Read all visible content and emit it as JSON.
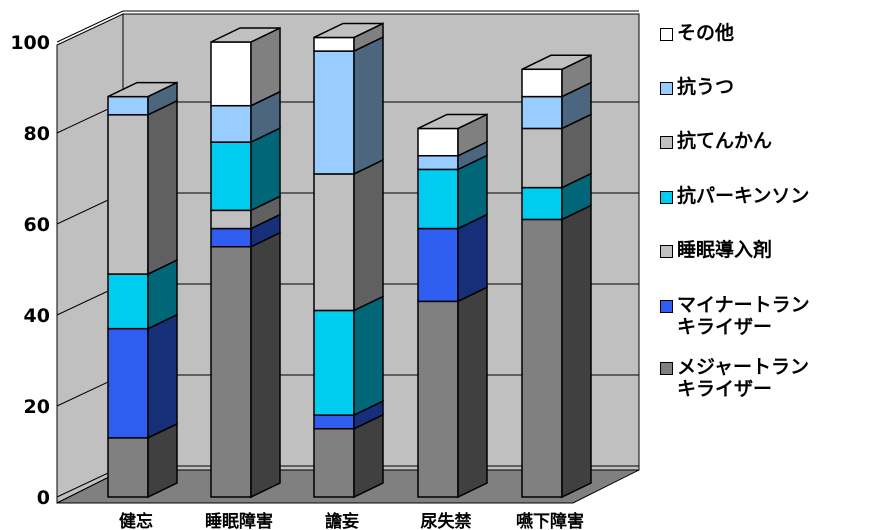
{
  "chart_data": {
    "type": "bar",
    "stacked": true,
    "style": "3d-stacked-column",
    "categories": [
      "健忘",
      "睡眠障害",
      "譫妄",
      "尿失禁",
      "嚥下障害"
    ],
    "ylim": [
      0,
      100
    ],
    "yticks": [
      "0",
      "20",
      "40",
      "60",
      "80",
      "100"
    ],
    "legend_position": "right",
    "series": [
      {
        "name": "メジャートランキライザー",
        "color": "#808080",
        "values": [
          13,
          55,
          15,
          43,
          61
        ]
      },
      {
        "name": "マイナートランキライザー",
        "color": "#2e5df0",
        "values": [
          24,
          4,
          3,
          16,
          0
        ]
      },
      {
        "name": "睡眠導入剤",
        "color": "#c0c0c0",
        "values": [
          0,
          4,
          0,
          0,
          0
        ]
      },
      {
        "name": "抗パーキンソン",
        "color": "#00ccf0",
        "values": [
          12,
          15,
          23,
          13,
          7
        ]
      },
      {
        "name": "抗てんかん",
        "color": "#c0c0c0",
        "values": [
          35,
          0,
          30,
          0,
          13
        ]
      },
      {
        "name": "抗うつ",
        "color": "#99ccff",
        "values": [
          4,
          8,
          27,
          3,
          7
        ]
      },
      {
        "name": "その他",
        "color": "#ffffff",
        "values": [
          0,
          14,
          3,
          6,
          6
        ]
      }
    ],
    "legend": [
      {
        "label": "その他",
        "color": "#ffffff"
      },
      {
        "label": "抗うつ",
        "color": "#99ccff"
      },
      {
        "label": "抗てんかん",
        "color": "#c0c0c0"
      },
      {
        "label": "抗パーキンソン",
        "color": "#00ccf0"
      },
      {
        "label": "睡眠導入剤",
        "color": "#c0c0c0"
      },
      {
        "label": "マイナートラン\nキライザー",
        "color": "#2e5df0"
      },
      {
        "label": "メジャートラン\nキライザー",
        "color": "#808080"
      }
    ]
  }
}
